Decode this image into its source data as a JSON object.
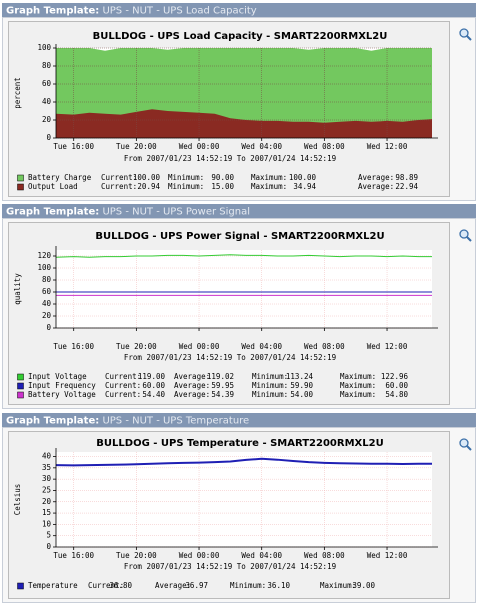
{
  "panels": [
    {
      "header_label": "Graph Template:",
      "header_value": "UPS - NUT - UPS Load Capacity"
    },
    {
      "header_label": "Graph Template:",
      "header_value": "UPS - NUT - UPS Power Signal"
    },
    {
      "header_label": "Graph Template:",
      "header_value": "UPS - NUT - UPS Temperature"
    }
  ],
  "chart_data": [
    {
      "type": "area",
      "title": "BULLDOG - UPS Load Capacity - SMART2200RMXL2U",
      "subtitle": "From 2007/01/23 14:52:19 To 2007/01/24 14:52:19",
      "ylabel": "percent",
      "grid": true,
      "x": [
        14.87,
        16,
        17,
        18,
        19,
        20,
        21,
        22,
        23,
        24,
        25,
        26,
        27,
        28,
        29,
        30,
        31,
        32,
        33,
        34,
        35,
        36,
        37,
        38,
        38.87
      ],
      "xlim": [
        14.87,
        38.87
      ],
      "xticks": [
        {
          "value": 16,
          "label": "Tue 16:00"
        },
        {
          "value": 20,
          "label": "Tue 20:00"
        },
        {
          "value": 24,
          "label": "Wed 00:00"
        },
        {
          "value": 28,
          "label": "Wed 04:00"
        },
        {
          "value": 32,
          "label": "Wed 08:00"
        },
        {
          "value": 36,
          "label": "Wed 12:00"
        }
      ],
      "ylim": [
        0,
        100
      ],
      "yticks": [
        0,
        20,
        40,
        60,
        80,
        100
      ],
      "series": [
        {
          "name": "Battery Charge",
          "color": "#73c85f",
          "values": [
            100,
            100,
            100,
            97,
            100,
            100,
            100,
            98,
            100,
            100,
            100,
            100,
            100,
            100,
            100,
            100,
            98,
            100,
            100,
            100,
            97,
            100,
            100,
            100,
            100
          ],
          "stats": [
            {
              "label": "Current:",
              "value": "100.00"
            },
            {
              "label": "Minimum:",
              "value": "90.00"
            },
            {
              "label": "Maximum:",
              "value": "100.00"
            },
            {
              "label": "Average:",
              "value": "98.89"
            }
          ]
        },
        {
          "name": "Output Load",
          "color": "#8a2a22",
          "values": [
            27,
            26,
            28,
            27,
            26,
            29,
            32,
            30,
            29,
            28,
            27,
            22,
            20,
            19,
            19,
            18,
            18,
            17,
            18,
            19,
            18,
            19,
            18,
            20,
            21
          ],
          "stats": [
            {
              "label": "Current:",
              "value": "20.94"
            },
            {
              "label": "Minimum:",
              "value": "15.00"
            },
            {
              "label": "Maximum:",
              "value": "34.94"
            },
            {
              "label": "Average:",
              "value": "22.94"
            }
          ]
        }
      ]
    },
    {
      "type": "line",
      "title": "BULLDOG - UPS Power Signal - SMART2200RMXL2U",
      "subtitle": "From 2007/01/23 14:52:19 To 2007/01/24 14:52:19",
      "ylabel": "quality",
      "grid": true,
      "x": [
        14.87,
        16,
        17,
        18,
        19,
        20,
        21,
        22,
        23,
        24,
        25,
        26,
        27,
        28,
        29,
        30,
        31,
        32,
        33,
        34,
        35,
        36,
        37,
        38,
        38.87
      ],
      "xlim": [
        14.87,
        38.87
      ],
      "xticks": [
        {
          "value": 16,
          "label": "Tue 16:00"
        },
        {
          "value": 20,
          "label": "Tue 20:00"
        },
        {
          "value": 24,
          "label": "Wed 00:00"
        },
        {
          "value": 28,
          "label": "Wed 04:00"
        },
        {
          "value": 32,
          "label": "Wed 08:00"
        },
        {
          "value": 36,
          "label": "Wed 12:00"
        }
      ],
      "ylim": [
        0,
        130
      ],
      "yticks": [
        0,
        20,
        40,
        60,
        80,
        100,
        120
      ],
      "series": [
        {
          "name": "Input Voltage",
          "color": "#33cc33",
          "values": [
            118,
            119,
            118,
            119,
            119,
            120,
            120,
            121,
            121,
            120,
            121,
            122,
            121,
            121,
            120,
            120,
            121,
            120,
            119,
            120,
            120,
            119,
            120,
            119,
            119
          ],
          "stats": [
            {
              "label": "Current:",
              "value": "119.00"
            },
            {
              "label": "Average:",
              "value": "119.02"
            },
            {
              "label": "Minimum:",
              "value": "113.24"
            },
            {
              "label": "Maximum:",
              "value": "122.96"
            }
          ]
        },
        {
          "name": "Input Frequency",
          "color": "#1f1fb4",
          "values": [
            60,
            60,
            60,
            60,
            60,
            60,
            60,
            60,
            60,
            60,
            60,
            60,
            60,
            60,
            60,
            60,
            60,
            60,
            60,
            60,
            60,
            60,
            60,
            60,
            60
          ],
          "stats": [
            {
              "label": "Current:",
              "value": "60.00"
            },
            {
              "label": "Average:",
              "value": "59.95"
            },
            {
              "label": "Minimum:",
              "value": "59.90"
            },
            {
              "label": "Maximum:",
              "value": "60.00"
            }
          ]
        },
        {
          "name": "Battery Voltage",
          "color": "#cc33cc",
          "values": [
            54.4,
            54.4,
            54.4,
            54.4,
            54.4,
            54.4,
            54.4,
            54.4,
            54.4,
            54.4,
            54.4,
            54.4,
            54.4,
            54.4,
            54.4,
            54.4,
            54.4,
            54.4,
            54.4,
            54.4,
            54.4,
            54.4,
            54.4,
            54.4,
            54.4
          ],
          "stats": [
            {
              "label": "Current:",
              "value": "54.40"
            },
            {
              "label": "Average:",
              "value": "54.39"
            },
            {
              "label": "Minimum:",
              "value": "54.00"
            },
            {
              "label": "Maximum:",
              "value": "54.80"
            }
          ]
        }
      ]
    },
    {
      "type": "line",
      "title": "BULLDOG - UPS Temperature - SMART2200RMXL2U",
      "subtitle": "From 2007/01/23 14:52:19 To 2007/01/24 14:52:19",
      "ylabel": "Celsius",
      "grid": true,
      "x": [
        14.87,
        16,
        17,
        18,
        19,
        20,
        21,
        22,
        23,
        24,
        25,
        26,
        27,
        28,
        29,
        30,
        31,
        32,
        33,
        34,
        35,
        36,
        37,
        38,
        38.87
      ],
      "xlim": [
        14.87,
        38.87
      ],
      "xticks": [
        {
          "value": 16,
          "label": "Tue 16:00"
        },
        {
          "value": 20,
          "label": "Tue 20:00"
        },
        {
          "value": 24,
          "label": "Wed 00:00"
        },
        {
          "value": 28,
          "label": "Wed 04:00"
        },
        {
          "value": 32,
          "label": "Wed 08:00"
        },
        {
          "value": 36,
          "label": "Wed 12:00"
        }
      ],
      "ylim": [
        0,
        42
      ],
      "yticks": [
        0,
        5,
        10,
        15,
        20,
        25,
        30,
        35,
        40
      ],
      "series": [
        {
          "name": "Temperature",
          "color": "#1f1fb4",
          "values": [
            36.2,
            36.1,
            36.2,
            36.3,
            36.4,
            36.6,
            36.8,
            37,
            37.2,
            37.3,
            37.5,
            37.8,
            38.5,
            39,
            38.6,
            38,
            37.5,
            37.2,
            37,
            36.9,
            36.8,
            36.8,
            36.7,
            36.8,
            36.8
          ],
          "stats": [
            {
              "label": "Current:",
              "value": "36.80"
            },
            {
              "label": "Average:",
              "value": "36.97"
            },
            {
              "label": "Minimum:",
              "value": "36.10"
            },
            {
              "label": "Maximum:",
              "value": "39.00"
            }
          ]
        }
      ]
    }
  ]
}
